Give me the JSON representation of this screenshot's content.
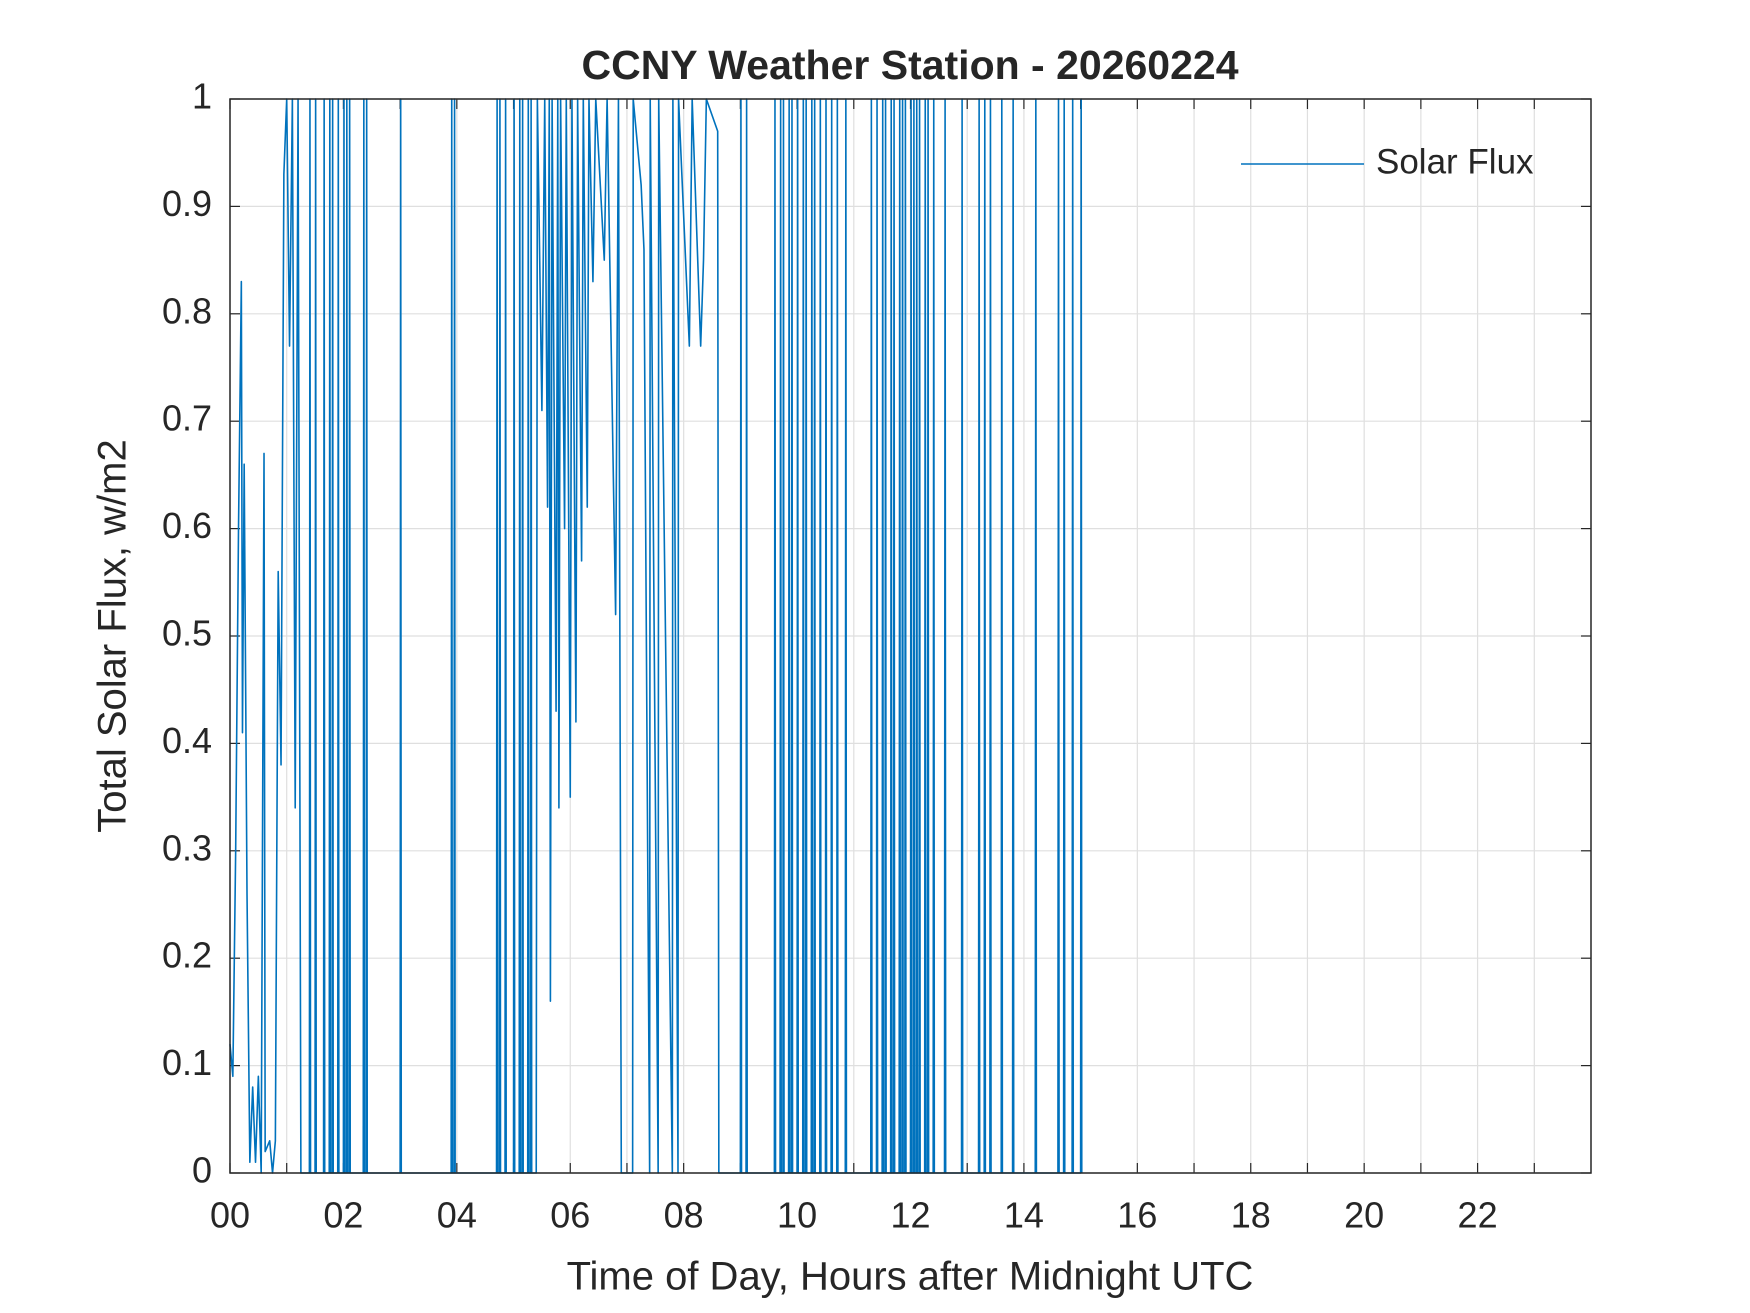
{
  "chart_data": {
    "type": "line",
    "title": "CCNY Weather Station - 20260224",
    "xlabel": "Time of Day, Hours after Midnight UTC",
    "ylabel": "Total Solar Flux, w/m2",
    "xlim": [
      0,
      24
    ],
    "ylim": [
      0,
      1
    ],
    "xticks": [
      {
        "value": 0,
        "label": "00"
      },
      {
        "value": 2,
        "label": "02"
      },
      {
        "value": 4,
        "label": "04"
      },
      {
        "value": 6,
        "label": "06"
      },
      {
        "value": 8,
        "label": "08"
      },
      {
        "value": 10,
        "label": "10"
      },
      {
        "value": 12,
        "label": "12"
      },
      {
        "value": 14,
        "label": "14"
      },
      {
        "value": 16,
        "label": "16"
      },
      {
        "value": 18,
        "label": "18"
      },
      {
        "value": 20,
        "label": "20"
      },
      {
        "value": 22,
        "label": "22"
      }
    ],
    "xminorticks": [
      1,
      3,
      5,
      7,
      9,
      11,
      13,
      15,
      17,
      19,
      21,
      23
    ],
    "yticks": [
      0,
      0.1,
      0.2,
      0.3,
      0.4,
      0.5,
      0.6,
      0.7,
      0.8,
      0.9,
      1
    ],
    "grid": true,
    "legend": "top-right",
    "series": [
      {
        "name": "Solar Flux",
        "color": "#0072bd",
        "x": [
          0,
          0.05,
          0.1,
          0.15,
          0.2,
          0.22,
          0.25,
          0.3,
          0.35,
          0.4,
          0.45,
          0.5,
          0.55,
          0.6,
          0.62,
          0.7,
          0.75,
          0.8,
          0.85,
          0.9,
          0.95,
          1.0,
          1.05,
          1.1,
          1.15,
          1.2,
          1.25,
          1.4,
          1.41,
          1.42,
          1.5,
          1.51,
          1.52,
          1.65,
          1.66,
          1.67,
          1.75,
          1.76,
          1.77,
          1.8,
          1.81,
          1.82,
          1.9,
          1.91,
          1.92,
          2.0,
          2.01,
          2.02,
          2.05,
          2.06,
          2.07,
          2.1,
          2.11,
          2.12,
          2.35,
          2.36,
          2.37,
          2.4,
          2.41,
          2.42,
          3.0,
          3.01,
          3.02,
          3.9,
          3.91,
          3.92,
          3.95,
          3.96,
          3.97,
          4.7,
          4.71,
          4.72,
          4.75,
          4.76,
          4.77,
          4.85,
          4.86,
          4.87,
          5.0,
          5.01,
          5.02,
          5.1,
          5.11,
          5.12,
          5.15,
          5.16,
          5.17,
          5.25,
          5.26,
          5.27,
          5.3,
          5.31,
          5.32,
          5.4,
          5.42,
          5.5,
          5.55,
          5.6,
          5.63,
          5.65,
          5.68,
          5.75,
          5.78,
          5.8,
          5.83,
          5.9,
          5.93,
          6.0,
          6.03,
          6.1,
          6.13,
          6.2,
          6.23,
          6.3,
          6.33,
          6.4,
          6.45,
          6.6,
          6.65,
          6.8,
          6.85,
          6.9,
          7.1,
          7.11,
          7.25,
          7.3,
          7.4,
          7.41,
          7.55,
          7.56,
          7.8,
          7.81,
          7.9,
          7.91,
          8.1,
          8.15,
          8.3,
          8.35,
          8.4,
          8.6,
          8.62,
          9.0,
          9.01,
          9.02,
          9.1,
          9.11,
          9.12,
          9.6,
          9.61,
          9.62,
          9.7,
          9.71,
          9.72,
          9.75,
          9.76,
          9.77,
          9.85,
          9.86,
          9.87,
          9.9,
          9.91,
          9.92,
          10.0,
          10.01,
          10.02,
          10.1,
          10.11,
          10.12,
          10.15,
          10.16,
          10.17,
          10.25,
          10.26,
          10.27,
          10.3,
          10.31,
          10.32,
          10.4,
          10.41,
          10.42,
          10.5,
          10.51,
          10.52,
          10.6,
          10.61,
          10.62,
          10.7,
          10.71,
          10.72,
          10.85,
          10.86,
          10.87,
          11.3,
          11.31,
          11.32,
          11.4,
          11.41,
          11.42,
          11.5,
          11.51,
          11.52,
          11.55,
          11.56,
          11.57,
          11.65,
          11.66,
          11.67,
          11.7,
          11.71,
          11.72,
          11.8,
          11.81,
          11.82,
          11.85,
          11.86,
          11.87,
          11.9,
          11.91,
          11.92,
          12.0,
          12.01,
          12.02,
          12.05,
          12.06,
          12.07,
          12.1,
          12.11,
          12.12,
          12.15,
          12.16,
          12.17,
          12.25,
          12.26,
          12.27,
          12.3,
          12.31,
          12.32,
          12.4,
          12.41,
          12.42,
          12.6,
          12.61,
          12.62,
          12.9,
          12.91,
          12.92,
          13.2,
          13.21,
          13.22,
          13.3,
          13.31,
          13.32,
          13.4,
          13.41,
          13.42,
          13.6,
          13.61,
          13.62,
          13.8,
          13.81,
          13.82,
          14.2,
          14.21,
          14.22,
          14.6,
          14.61,
          14.62,
          14.7,
          14.71,
          14.72,
          14.85,
          14.86,
          14.87,
          15.0,
          15.01,
          15.02
        ],
        "values": [
          0.12,
          0.09,
          0.3,
          0.6,
          0.83,
          0.41,
          0.66,
          0.26,
          0.01,
          0.08,
          0.01,
          0.09,
          0,
          0.67,
          0.02,
          0.03,
          0,
          0.03,
          0.56,
          0.38,
          0.93,
          1,
          0.77,
          1,
          0.34,
          1,
          0,
          0,
          1,
          0,
          0,
          1,
          0,
          0,
          1,
          0,
          0,
          1,
          0,
          0,
          1,
          0,
          0,
          1,
          0,
          0,
          1,
          0,
          0,
          1,
          0,
          0,
          1,
          0,
          0,
          1,
          0,
          0,
          1,
          0,
          0,
          1,
          0,
          0,
          1,
          0,
          0,
          1,
          0,
          0,
          1,
          0,
          0,
          1,
          0,
          0,
          1,
          0,
          0,
          1,
          0,
          0,
          1,
          0,
          0,
          1,
          0,
          0,
          1,
          0,
          0,
          1,
          0,
          0,
          1,
          0.71,
          1,
          0.62,
          1,
          0.16,
          1,
          0.43,
          1,
          0.34,
          1,
          0.6,
          1,
          0.35,
          1,
          0.42,
          1,
          0.57,
          1,
          0.62,
          1,
          0.83,
          1,
          0.85,
          1,
          0.52,
          1,
          0,
          0,
          1,
          0.92,
          0.86,
          0,
          1,
          0,
          1,
          0,
          1,
          0,
          1,
          0.77,
          1,
          0.77,
          0.85,
          1,
          0.97,
          0,
          0,
          1,
          0,
          0,
          1,
          0,
          0,
          1,
          0,
          0,
          1,
          0,
          0,
          1,
          0,
          0,
          1,
          0,
          0,
          1,
          0,
          0,
          1,
          0,
          0,
          1,
          0,
          0,
          1,
          0,
          0,
          1,
          0,
          0,
          1,
          0,
          0,
          1,
          0,
          0,
          1,
          0,
          0,
          1,
          0,
          0,
          1,
          0,
          0,
          1,
          0,
          0,
          1,
          0,
          0,
          1,
          0,
          0,
          1,
          0,
          0,
          1,
          0,
          0,
          1,
          0,
          0,
          1,
          0,
          0,
          1,
          0,
          0,
          1,
          0,
          0,
          1,
          0,
          0,
          1,
          0,
          0,
          1,
          0,
          0,
          1,
          0,
          0,
          1,
          0,
          0,
          1,
          0,
          0,
          1,
          0,
          0,
          1,
          0,
          0,
          1,
          0,
          0,
          1,
          0,
          0,
          1,
          0,
          0,
          1,
          0,
          0,
          1,
          0,
          0,
          1,
          0,
          0,
          1,
          0,
          0,
          1,
          0,
          0,
          1,
          0,
          0,
          1,
          0,
          0,
          1,
          0,
          0,
          1,
          0
        ]
      }
    ]
  }
}
